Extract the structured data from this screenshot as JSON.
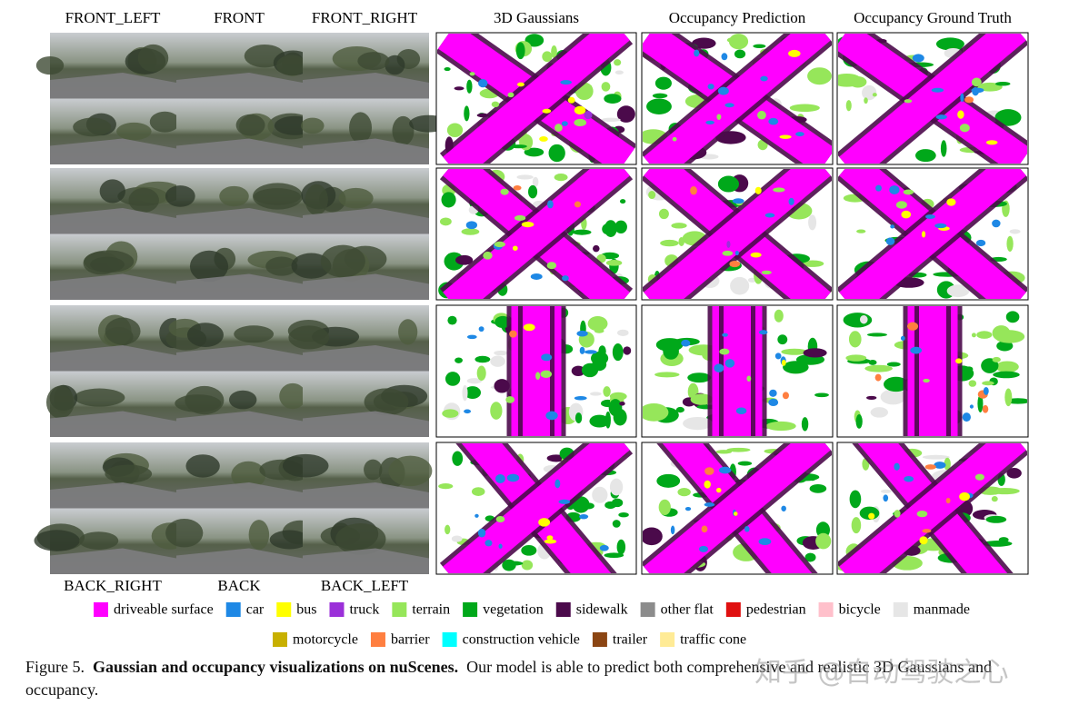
{
  "camera_labels_top": [
    "FRONT_LEFT",
    "FRONT",
    "FRONT_RIGHT"
  ],
  "camera_labels_bottom": [
    "BACK_RIGHT",
    "BACK",
    "BACK_LEFT"
  ],
  "panel_titles": [
    "3D Gaussians",
    "Occupancy Prediction",
    "Occupancy Ground Truth"
  ],
  "legend": [
    {
      "label": "driveable surface",
      "color": "#ff00ff"
    },
    {
      "label": "car",
      "color": "#1e88e5"
    },
    {
      "label": "bus",
      "color": "#ffff00"
    },
    {
      "label": "truck",
      "color": "#9b30d9"
    },
    {
      "label": "terrain",
      "color": "#96e65a"
    },
    {
      "label": "vegetation",
      "color": "#00a81a"
    },
    {
      "label": "sidewalk",
      "color": "#4b0a4b"
    },
    {
      "label": "other flat",
      "color": "#8c8c8c"
    },
    {
      "label": "pedestrian",
      "color": "#e01010"
    },
    {
      "label": "bicycle",
      "color": "#ffc0cb"
    },
    {
      "label": "manmade",
      "color": "#e6e6e6"
    },
    {
      "label": "motorcycle",
      "color": "#c8b000"
    },
    {
      "label": "barrier",
      "color": "#ff7f40"
    },
    {
      "label": "construction vehicle",
      "color": "#00ffff"
    },
    {
      "label": "trailer",
      "color": "#8b4513"
    },
    {
      "label": "traffic cone",
      "color": "#ffeb96"
    }
  ],
  "caption": {
    "label": "Figure 5.",
    "bold": "Gaussian and occupancy visualizations on nuScenes.",
    "text": "Our model is able to predict both comprehensive and realistic 3D Gaussians and occupancy."
  },
  "watermark": "知乎 @自动驾驶之心"
}
